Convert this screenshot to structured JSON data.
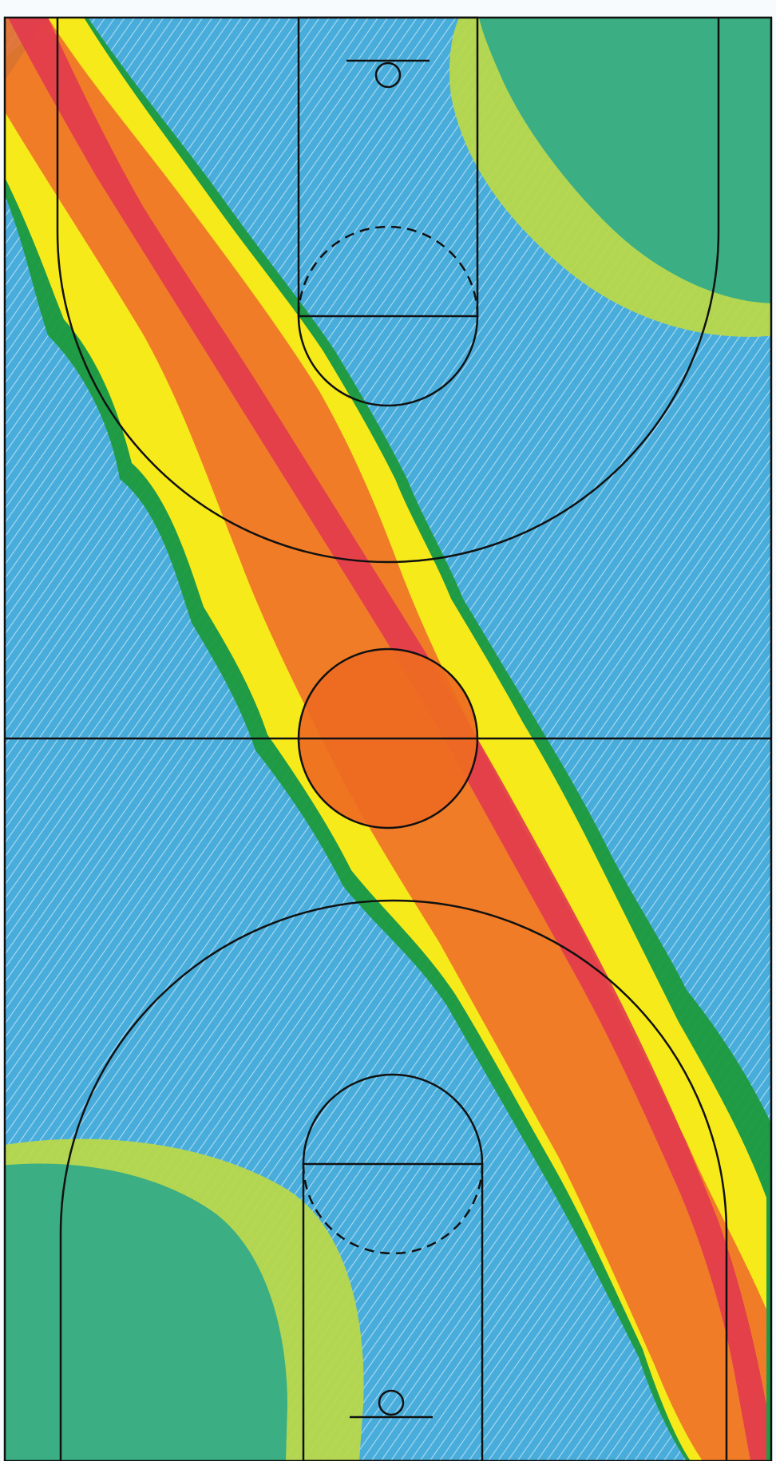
{
  "colors": {
    "paper": "#f7fbfd",
    "blue": "#2a9fd6",
    "blue_light": "#7cc6ea",
    "yellow": "#f6ea1a",
    "orange": "#f0702a",
    "red": "#e23a4e",
    "green_dark": "#1f9a3c",
    "teal": "#2eaa88",
    "lime": "#b9d84a",
    "center_circle_fill": "#ee6a22",
    "lines": "#111111"
  },
  "drawing": {
    "subject": "crayon-shaded-basketball-court",
    "heat_band_direction": "top-left-to-bottom-right",
    "corner_zones": [
      "top-right",
      "bottom-left"
    ]
  }
}
